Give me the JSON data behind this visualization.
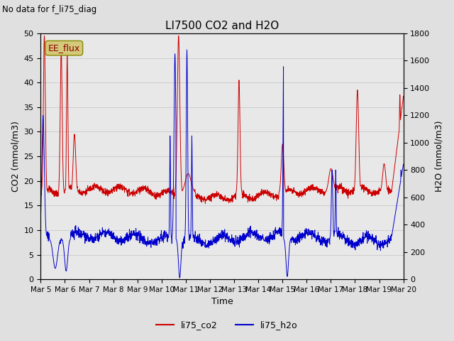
{
  "title": "LI7500 CO2 and H2O",
  "suptitle": "No data for f_li75_diag",
  "xlabel": "Time",
  "ylabel_left": "CO2 (mmol/m3)",
  "ylabel_right": "H2O (mmol/m3)",
  "ylim_left": [
    0,
    50
  ],
  "ylim_right": [
    0,
    1800
  ],
  "yticks_left": [
    0,
    5,
    10,
    15,
    20,
    25,
    30,
    35,
    40,
    45,
    50
  ],
  "yticks_right": [
    0,
    200,
    400,
    600,
    800,
    1000,
    1200,
    1400,
    1600,
    1800
  ],
  "xtick_labels": [
    "Mar 5",
    "Mar 6",
    "Mar 7",
    "Mar 8",
    "Mar 9",
    "Mar 10",
    "Mar 11",
    "Mar 12",
    "Mar 13",
    "Mar 14",
    "Mar 15",
    "Mar 16",
    "Mar 17",
    "Mar 18",
    "Mar 19",
    "Mar 20"
  ],
  "co2_color": "#cc0000",
  "h2o_color": "#0000cc",
  "ee_flux_box_color": "#d4c97a",
  "ee_flux_text": "EE_flux",
  "legend_co2": "li75_co2",
  "legend_h2o": "li75_h2o",
  "background_color": "#e0e0e0",
  "plot_bg_color": "#e8e8e8",
  "co2_base": 17.5,
  "h2o_base": 300,
  "n_points": 2000
}
